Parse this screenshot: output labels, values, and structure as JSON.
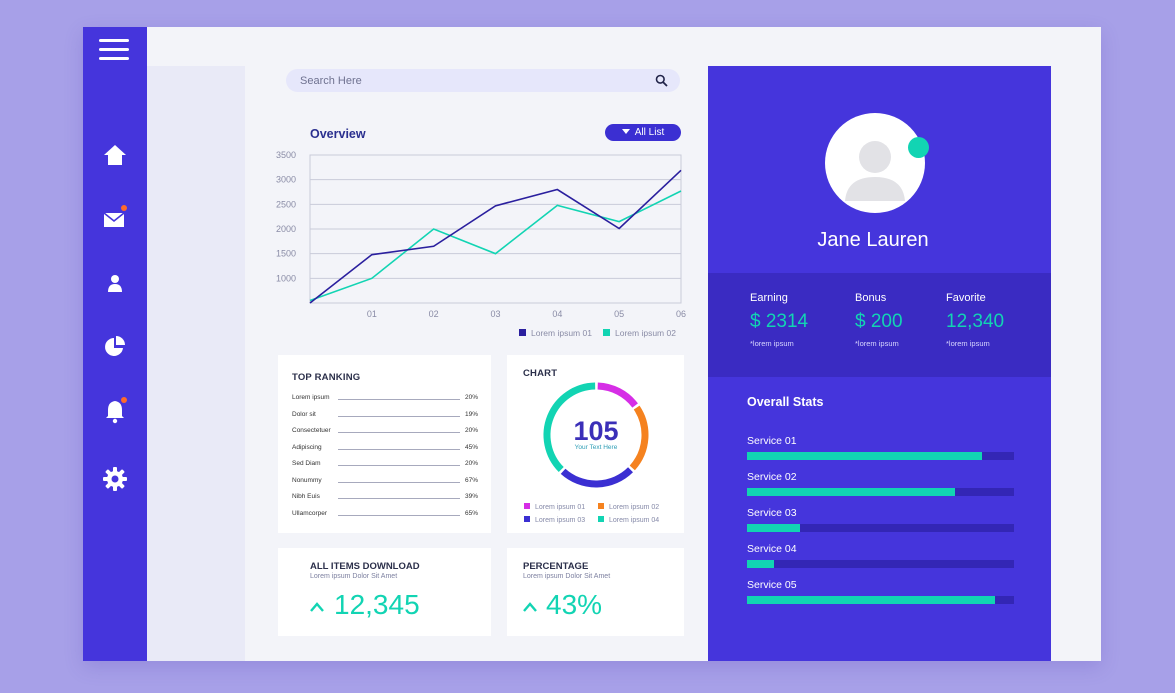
{
  "search": {
    "placeholder": "Search Here"
  },
  "nav": {
    "items": [
      {
        "icon": "home-icon"
      },
      {
        "icon": "mail-icon",
        "badge": true
      },
      {
        "icon": "user-icon"
      },
      {
        "icon": "pie-chart-icon"
      },
      {
        "icon": "bell-icon",
        "badge": true
      },
      {
        "icon": "gear-icon"
      }
    ]
  },
  "overview": {
    "title": "Overview",
    "filter_label": "All List"
  },
  "chart_data": [
    {
      "type": "line",
      "title": "Overview",
      "x": [
        "",
        "01",
        "02",
        "03",
        "04",
        "05",
        "06"
      ],
      "ylim": [
        500,
        3500
      ],
      "yticks": [
        "1000",
        "1500",
        "2000",
        "2500",
        "3000",
        "3500"
      ],
      "grid": true,
      "legend": "bottom-right",
      "series": [
        {
          "name": "Lorem ipsum 01",
          "color": "#2a1f9e",
          "values": [
            500,
            1480,
            1650,
            2470,
            2800,
            2010,
            3190
          ]
        },
        {
          "name": "Lorem ipsum 02",
          "color": "#12d4b3",
          "values": [
            550,
            1000,
            2000,
            1500,
            2480,
            2150,
            2770
          ]
        }
      ]
    },
    {
      "type": "pie",
      "title": "CHART",
      "center_value": "105",
      "center_label": "Your Text Here",
      "categories": [
        "Lorem ipsum 01",
        "Lorem ipsum 02",
        "Lorem ipsum 03",
        "Lorem ipsum 04"
      ],
      "values": [
        15,
        22,
        25,
        38
      ],
      "colors": [
        "#d62ee6",
        "#f5821f",
        "#3b2fd2",
        "#12d4b3"
      ]
    }
  ],
  "top_ranking": {
    "title": "TOP RANKING",
    "rows": [
      {
        "name": "Lorem ipsum",
        "value": "20%"
      },
      {
        "name": "Dolor sit",
        "value": "19%"
      },
      {
        "name": "Consectetuer",
        "value": "20%"
      },
      {
        "name": "Adipiscing",
        "value": "45%"
      },
      {
        "name": "Sed Diam",
        "value": "20%"
      },
      {
        "name": "Nonummy",
        "value": "67%"
      },
      {
        "name": "Nibh Euis",
        "value": "39%"
      },
      {
        "name": "Ullamcorper",
        "value": "65%"
      }
    ]
  },
  "downloads": {
    "title": "ALL ITEMS DOWNLOAD",
    "subtitle": "Lorem ipsum Dolor Sit Amet",
    "value": "12,345"
  },
  "percentage": {
    "title": "PERCENTAGE",
    "subtitle": "Lorem ipsum Dolor Sit Amet",
    "value": "43%"
  },
  "profile": {
    "name": "Jane Lauren",
    "stats": [
      {
        "label": "Earning",
        "value": "$ 2314",
        "sub": "*lorem ipsum"
      },
      {
        "label": "Bonus",
        "value": "$ 200",
        "sub": "*lorem ipsum"
      },
      {
        "label": "Favorite",
        "value": "12,340",
        "sub": "*lorem ipsum"
      }
    ]
  },
  "overall_stats": {
    "title": "Overall Stats",
    "services": [
      {
        "label": "Service  01",
        "progress": 0.88
      },
      {
        "label": "Service 02",
        "progress": 0.78
      },
      {
        "label": "Service 03",
        "progress": 0.2
      },
      {
        "label": "Service 04",
        "progress": 0.1
      },
      {
        "label": "Service  05",
        "progress": 0.93
      }
    ]
  },
  "colors": {
    "primary": "#4535dc",
    "accent": "#12d4b3",
    "background": "#a7a0e8"
  }
}
